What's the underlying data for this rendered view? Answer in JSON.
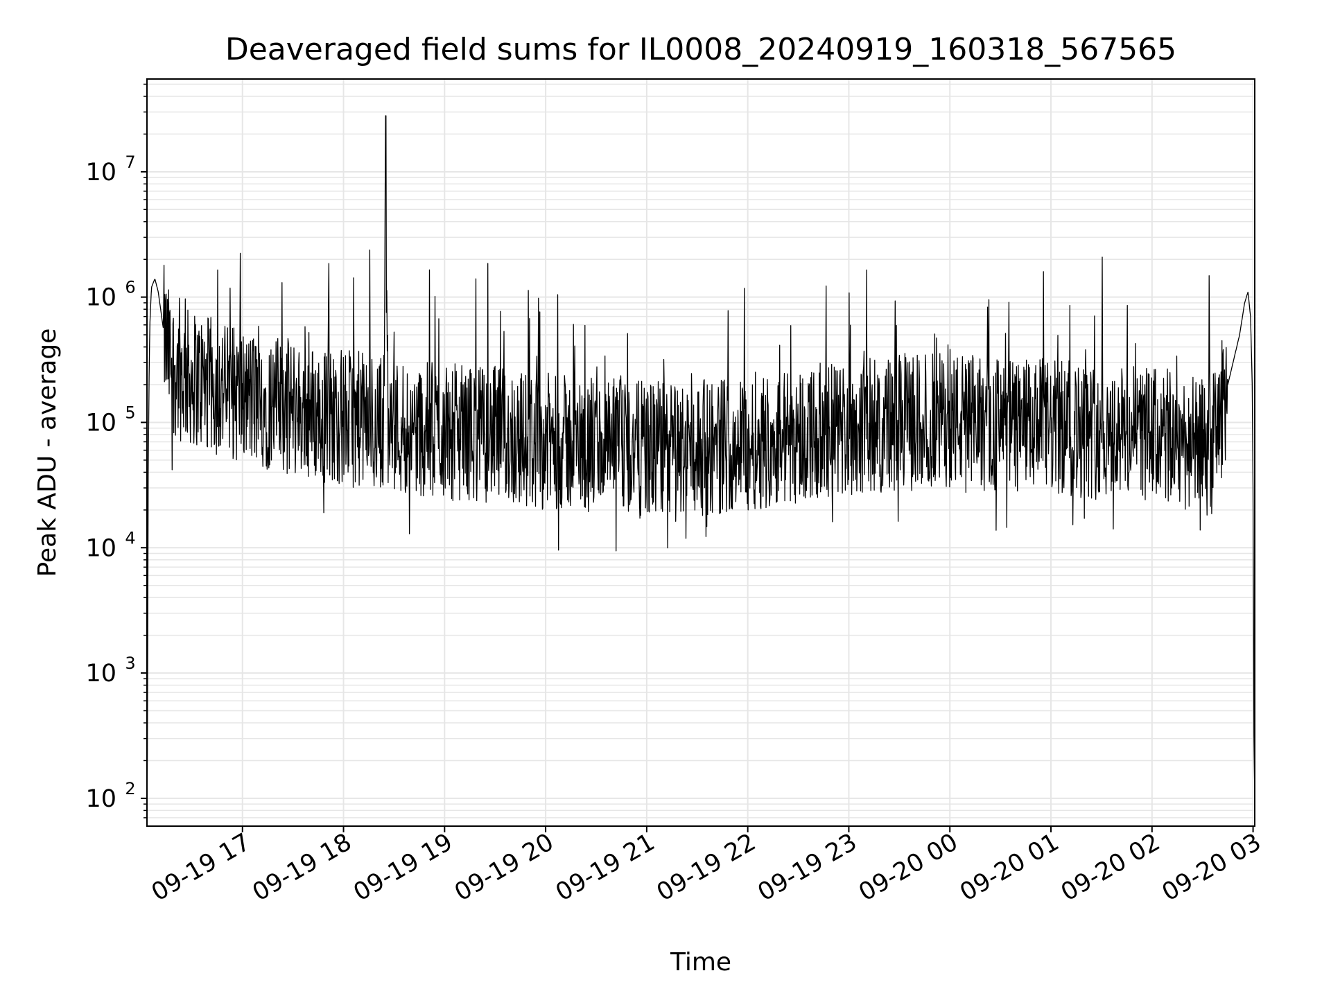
{
  "chart_data": {
    "type": "line",
    "title": "Deaveraged field sums for IL0008_20240919_160318_567565",
    "xlabel": "Time",
    "ylabel": "Peak ADU - average",
    "yscale": "log",
    "ylim": [
      60,
      55000000
    ],
    "xlim": [
      "2024-09-19 16:03:18",
      "2024-09-20 03:01:00"
    ],
    "grid": {
      "major": true,
      "minor_y": true,
      "color": "#e6e6e6"
    },
    "line_color": "#000000",
    "x_ticks": [
      {
        "t": "2024-09-19 17:00",
        "label": "09-19 17"
      },
      {
        "t": "2024-09-19 18:00",
        "label": "09-19 18"
      },
      {
        "t": "2024-09-19 19:00",
        "label": "09-19 19"
      },
      {
        "t": "2024-09-19 20:00",
        "label": "09-19 20"
      },
      {
        "t": "2024-09-19 21:00",
        "label": "09-19 21"
      },
      {
        "t": "2024-09-19 22:00",
        "label": "09-19 22"
      },
      {
        "t": "2024-09-19 23:00",
        "label": "09-19 23"
      },
      {
        "t": "2024-09-20 00:00",
        "label": "09-20 00"
      },
      {
        "t": "2024-09-20 01:00",
        "label": "09-20 01"
      },
      {
        "t": "2024-09-20 02:00",
        "label": "09-20 02"
      },
      {
        "t": "2024-09-20 03:00",
        "label": "09-20 03"
      }
    ],
    "y_ticks": [
      {
        "value": 100,
        "base": "10",
        "exp": "2"
      },
      {
        "value": 1000,
        "base": "10",
        "exp": "3"
      },
      {
        "value": 10000,
        "base": "10",
        "exp": "4"
      },
      {
        "value": 100000,
        "base": "10",
        "exp": "5"
      },
      {
        "value": 1000000,
        "base": "10",
        "exp": "6"
      },
      {
        "value": 10000000,
        "base": "10",
        "exp": "7"
      }
    ],
    "series": [
      {
        "x": [
          "2024-09-19 16:03:18",
          "2024-09-19 16:03:40",
          "2024-09-19 16:04:00",
          "2024-09-19 16:04:30",
          "2024-09-19 16:05:00",
          "2024-09-19 16:06:00",
          "2024-09-19 16:08:00",
          "2024-09-19 16:10:00",
          "2024-09-19 16:12:00",
          "2024-09-19 16:14:00",
          "2024-09-19 16:16:00",
          "2024-09-19 16:19:00",
          "2024-09-19 16:23:00",
          "2024-09-19 16:28:00",
          "2024-09-19 16:33:00",
          "2024-09-19 16:40:00",
          "2024-09-19 16:50:00",
          "2024-09-19 17:00:00",
          "2024-09-19 17:10:00",
          "2024-09-19 17:20:00",
          "2024-09-19 17:30:00",
          "2024-09-19 17:40:00",
          "2024-09-19 17:50:00",
          "2024-09-19 18:00:00",
          "2024-09-19 18:10:00",
          "2024-09-19 18:20:00",
          "2024-09-19 18:24:00",
          "2024-09-19 18:25:00",
          "2024-09-19 18:26:00",
          "2024-09-19 18:30:00",
          "2024-09-19 18:40:00",
          "2024-09-19 19:00:00",
          "2024-09-19 19:30:00",
          "2024-09-19 20:00:00",
          "2024-09-19 20:30:00",
          "2024-09-19 21:00:00",
          "2024-09-19 21:30:00",
          "2024-09-19 22:00:00",
          "2024-09-19 22:30:00",
          "2024-09-19 23:00:00",
          "2024-09-19 23:30:00",
          "2024-09-20 00:00:00",
          "2024-09-20 00:30:00",
          "2024-09-20 01:00:00",
          "2024-09-20 01:30:00",
          "2024-09-20 02:00:00",
          "2024-09-20 02:20:00",
          "2024-09-20 02:35:00",
          "2024-09-20 02:45:00",
          "2024-09-20 02:52:00",
          "2024-09-20 02:55:00",
          "2024-09-20 02:57:00",
          "2024-09-20 02:58:30",
          "2024-09-20 02:59:30",
          "2024-09-20 03:00:00",
          "2024-09-20 03:00:30",
          "2024-09-20 03:01:00"
        ],
        "y": [
          60,
          400,
          30000,
          200000,
          600000,
          1200000,
          1400000,
          1100000,
          700000,
          450000,
          350000,
          280000,
          250000,
          230000,
          220000,
          200000,
          180000,
          160000,
          150000,
          140000,
          130000,
          120000,
          115000,
          110000,
          105000,
          100000,
          110000,
          28000000,
          100000,
          95000,
          90000,
          85000,
          80000,
          70000,
          65000,
          60000,
          62000,
          70000,
          80000,
          90000,
          100000,
          105000,
          95000,
          90000,
          85000,
          80000,
          70000,
          60000,
          200000,
          500000,
          900000,
          1100000,
          700000,
          200000,
          30000,
          300,
          100
        ]
      }
    ]
  }
}
